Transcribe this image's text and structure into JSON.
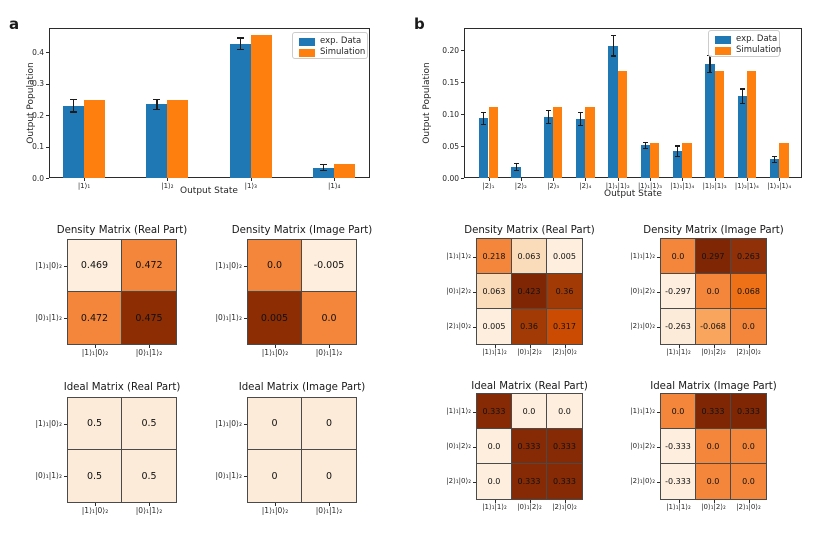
{
  "panels": [
    {
      "label": "a"
    },
    {
      "label": "b"
    }
  ],
  "colors": {
    "exp_data": "#1f77b4",
    "simulation": "#ff7f0e",
    "error_bar": "#1c1c1c",
    "colormap_low": "#fff5eb",
    "colormap_high": "#7f2704"
  },
  "chart_data": [
    {
      "id": "a_bar",
      "panel": "a",
      "type": "bar",
      "title": "",
      "xlabel": "Output State",
      "ylabel": "Output Population",
      "categories": [
        "|1⟩₁",
        "|1⟩₂",
        "|1⟩₃",
        "|1⟩₄"
      ],
      "series": [
        {
          "name": "exp. Data",
          "color": "#1f77b4",
          "values": [
            0.23,
            0.235,
            0.428,
            0.033
          ],
          "errors": [
            0.021,
            0.017,
            0.02,
            0.011
          ]
        },
        {
          "name": "Simulation",
          "color": "#ff7f0e",
          "values": [
            0.25,
            0.25,
            0.455,
            0.046
          ]
        }
      ],
      "ylim": [
        0,
        0.478
      ],
      "yticks": [
        {
          "v": 0.0,
          "label": "0.0"
        },
        {
          "v": 0.1,
          "label": "0.1"
        },
        {
          "v": 0.2,
          "label": "0.2"
        },
        {
          "v": 0.3,
          "label": "0.3"
        },
        {
          "v": 0.4,
          "label": "0.4"
        }
      ],
      "legend_position": "upper right",
      "grid": false
    },
    {
      "id": "b_bar",
      "panel": "b",
      "type": "bar",
      "title": "",
      "xlabel": "Output State",
      "ylabel": "Output Population",
      "categories": [
        "|2⟩₁",
        "|2⟩₂",
        "|2⟩₃",
        "|2⟩₄",
        "|1⟩₁|1⟩₂",
        "|1⟩₁|1⟩₃",
        "|1⟩₁|1⟩₄",
        "|1⟩₂|1⟩₃",
        "|1⟩₂|1⟩₄",
        "|1⟩₃|1⟩₄"
      ],
      "series": [
        {
          "name": "exp. Data",
          "color": "#1f77b4",
          "values": [
            0.093,
            0.017,
            0.096,
            0.092,
            0.207,
            0.051,
            0.042,
            0.178,
            0.128,
            0.029
          ],
          "errors": [
            0.01,
            0.006,
            0.011,
            0.011,
            0.017,
            0.006,
            0.009,
            0.014,
            0.012,
            0.006
          ]
        },
        {
          "name": "Simulation",
          "color": "#ff7f0e",
          "values": [
            0.111,
            0.0,
            0.111,
            0.111,
            0.167,
            0.055,
            0.055,
            0.167,
            0.167,
            0.055
          ]
        }
      ],
      "ylim": [
        0,
        0.2344
      ],
      "yticks": [
        {
          "v": 0.0,
          "label": "0.00"
        },
        {
          "v": 0.05,
          "label": "0.05"
        },
        {
          "v": 0.1,
          "label": "0.10"
        },
        {
          "v": 0.15,
          "label": "0.15"
        },
        {
          "v": 0.2,
          "label": "0.20"
        }
      ],
      "legend_position": "upper right",
      "grid": false
    },
    {
      "id": "a_density_real",
      "panel": "a",
      "type": "heatmap",
      "title": "Density Matrix (Real Part)",
      "rows": [
        "|1⟩₁|0⟩₂",
        "|0⟩₁|1⟩₂"
      ],
      "cols": [
        "|1⟩₁|0⟩₂",
        "|0⟩₁|1⟩₂"
      ],
      "values": [
        [
          0.469,
          0.472
        ],
        [
          0.472,
          0.475
        ]
      ],
      "labels": [
        [
          "0.469",
          "0.472"
        ],
        [
          "0.472",
          "0.475"
        ]
      ],
      "cell_colors": [
        [
          "#fdeedd",
          "#f3863a"
        ],
        [
          "#f3863a",
          "#8c2d04"
        ]
      ]
    },
    {
      "id": "a_density_imag",
      "panel": "a",
      "type": "heatmap",
      "title": "Density Matrix (Image Part)",
      "rows": [
        "|1⟩₁|0⟩₂",
        "|0⟩₁|1⟩₂"
      ],
      "cols": [
        "|1⟩₁|0⟩₂",
        "|0⟩₁|1⟩₂"
      ],
      "values": [
        [
          0.0,
          -0.005
        ],
        [
          0.005,
          0.0
        ]
      ],
      "labels": [
        [
          "0.0",
          "-0.005"
        ],
        [
          "0.005",
          "0.0"
        ]
      ],
      "cell_colors": [
        [
          "#f3863a",
          "#fdeedd"
        ],
        [
          "#8c2d04",
          "#f3863a"
        ]
      ]
    },
    {
      "id": "a_ideal_real",
      "panel": "a",
      "type": "heatmap",
      "title": "Ideal Matrix (Real Part)",
      "rows": [
        "|1⟩₁|0⟩₂",
        "|0⟩₁|1⟩₂"
      ],
      "cols": [
        "|1⟩₁|0⟩₂",
        "|0⟩₁|1⟩₂"
      ],
      "values": [
        [
          0.5,
          0.5
        ],
        [
          0.5,
          0.5
        ]
      ],
      "labels": [
        [
          "0.5",
          "0.5"
        ],
        [
          "0.5",
          "0.5"
        ]
      ],
      "cell_colors": [
        [
          "#fcebd9",
          "#fcebd9"
        ],
        [
          "#fcebd9",
          "#fcebd9"
        ]
      ]
    },
    {
      "id": "a_ideal_imag",
      "panel": "a",
      "type": "heatmap",
      "title": "Ideal Matrix (Image Part)",
      "rows": [
        "|1⟩₁|0⟩₂",
        "|0⟩₁|1⟩₂"
      ],
      "cols": [
        "|1⟩₁|0⟩₂",
        "|0⟩₁|1⟩₂"
      ],
      "values": [
        [
          0,
          0
        ],
        [
          0,
          0
        ]
      ],
      "labels": [
        [
          "0",
          "0"
        ],
        [
          "0",
          "0"
        ]
      ],
      "cell_colors": [
        [
          "#fcebd9",
          "#fcebd9"
        ],
        [
          "#fcebd9",
          "#fcebd9"
        ]
      ]
    },
    {
      "id": "b_density_real",
      "panel": "b",
      "type": "heatmap",
      "title": "Density Matrix (Real Part)",
      "rows": [
        "|1⟩₁|1⟩₂",
        "|0⟩₁|2⟩₂",
        "|2⟩₁|0⟩₂"
      ],
      "cols": [
        "|1⟩₁|1⟩₂",
        "|0⟩₁|2⟩₂",
        "|2⟩₁|0⟩₂"
      ],
      "values": [
        [
          0.218,
          0.063,
          0.005
        ],
        [
          0.063,
          0.423,
          0.36
        ],
        [
          0.005,
          0.36,
          0.317
        ]
      ],
      "labels": [
        [
          "0.218",
          "0.063",
          "0.005"
        ],
        [
          "0.063",
          "0.423",
          "0.36"
        ],
        [
          "0.005",
          "0.36",
          "0.317"
        ]
      ],
      "cell_colors": [
        [
          "#f3863a",
          "#fbdcba",
          "#fdeedd"
        ],
        [
          "#fbdcba",
          "#7f2704",
          "#a23a06"
        ],
        [
          "#fdeedd",
          "#a23a06",
          "#cc4b02"
        ]
      ]
    },
    {
      "id": "b_density_imag",
      "panel": "b",
      "type": "heatmap",
      "title": "Density Matrix (Image Part)",
      "rows": [
        "|1⟩₁|1⟩₂",
        "|0⟩₁|2⟩₂",
        "|2⟩₁|0⟩₂"
      ],
      "cols": [
        "|1⟩₁|1⟩₂",
        "|0⟩₁|2⟩₂",
        "|2⟩₁|0⟩₂"
      ],
      "values": [
        [
          0.0,
          0.297,
          0.263
        ],
        [
          -0.297,
          0.0,
          0.068
        ],
        [
          -0.263,
          -0.068,
          0.0
        ]
      ],
      "labels": [
        [
          "0.0",
          "0.297",
          "0.263"
        ],
        [
          "-0.297",
          "0.0",
          "0.068"
        ],
        [
          "-0.263",
          "-0.068",
          "0.0"
        ]
      ],
      "cell_colors": [
        [
          "#f3863a",
          "#7f2704",
          "#8f3009"
        ],
        [
          "#fdeedd",
          "#f3863a",
          "#ee7118"
        ],
        [
          "#fcebd9",
          "#f9a55e",
          "#f3863a"
        ]
      ]
    },
    {
      "id": "b_ideal_real",
      "panel": "b",
      "type": "heatmap",
      "title": "Ideal Matrix (Real Part)",
      "rows": [
        "|1⟩₁|1⟩₂",
        "|0⟩₁|2⟩₂",
        "|2⟩₁|0⟩₂"
      ],
      "cols": [
        "|1⟩₁|1⟩₂",
        "|0⟩₁|2⟩₂",
        "|2⟩₁|0⟩₂"
      ],
      "values": [
        [
          0.333,
          0.0,
          0.0
        ],
        [
          0.0,
          0.333,
          0.333
        ],
        [
          0.0,
          0.333,
          0.333
        ]
      ],
      "labels": [
        [
          "0.333",
          "0.0",
          "0.0"
        ],
        [
          "0.0",
          "0.333",
          "0.333"
        ],
        [
          "0.0",
          "0.333",
          "0.333"
        ]
      ],
      "cell_colors": [
        [
          "#852a04",
          "#fdeedd",
          "#fdeedd"
        ],
        [
          "#fdeedd",
          "#852a04",
          "#852a04"
        ],
        [
          "#fdeedd",
          "#852a04",
          "#852a04"
        ]
      ]
    },
    {
      "id": "b_ideal_imag",
      "panel": "b",
      "type": "heatmap",
      "title": "Ideal Matrix (Image Part)",
      "rows": [
        "|1⟩₁|1⟩₂",
        "|0⟩₁|2⟩₂",
        "|2⟩₁|0⟩₂"
      ],
      "cols": [
        "|1⟩₁|1⟩₂",
        "|0⟩₁|2⟩₂",
        "|2⟩₁|0⟩₂"
      ],
      "values": [
        [
          0.0,
          0.333,
          0.333
        ],
        [
          -0.333,
          0.0,
          0.0
        ],
        [
          -0.333,
          0.0,
          0.0
        ]
      ],
      "labels": [
        [
          "0.0",
          "0.333",
          "0.333"
        ],
        [
          "-0.333",
          "0.0",
          "0.0"
        ],
        [
          "-0.333",
          "0.0",
          "0.0"
        ]
      ],
      "cell_colors": [
        [
          "#f3863a",
          "#7f2704",
          "#7f2704"
        ],
        [
          "#fdeedd",
          "#f3863a",
          "#f3863a"
        ],
        [
          "#fdeedd",
          "#f3863a",
          "#f3863a"
        ]
      ]
    }
  ]
}
